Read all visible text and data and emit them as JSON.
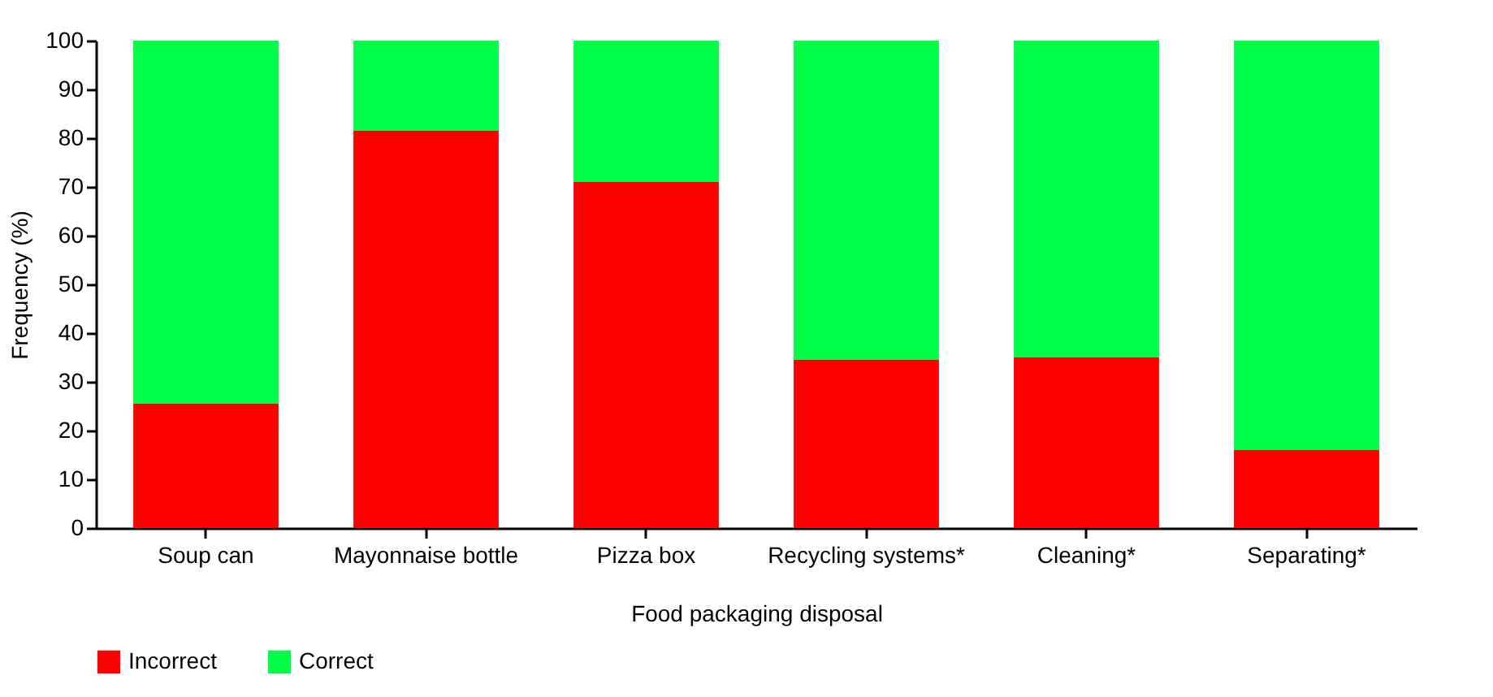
{
  "chart_data": {
    "type": "bar",
    "stacked": true,
    "xlabel": "Food packaging disposal",
    "ylabel": "Frequency (%)",
    "categories": [
      "Soup can",
      "Mayonnaise bottle",
      "Pizza box",
      "Recycling systems*",
      "Cleaning*",
      "Separating*"
    ],
    "series": [
      {
        "name": "Incorrect",
        "color": "#ff0000",
        "values": [
          25.5,
          81.5,
          71,
          34.5,
          35,
          16
        ]
      },
      {
        "name": "Correct",
        "color": "#00ff48",
        "values": [
          74.5,
          18.5,
          29,
          65.5,
          65,
          84
        ]
      }
    ],
    "ylim": [
      0,
      100
    ],
    "yticks": [
      0,
      10,
      20,
      30,
      40,
      50,
      60,
      70,
      80,
      90,
      100
    ],
    "grid": false,
    "legend": "bottom"
  }
}
